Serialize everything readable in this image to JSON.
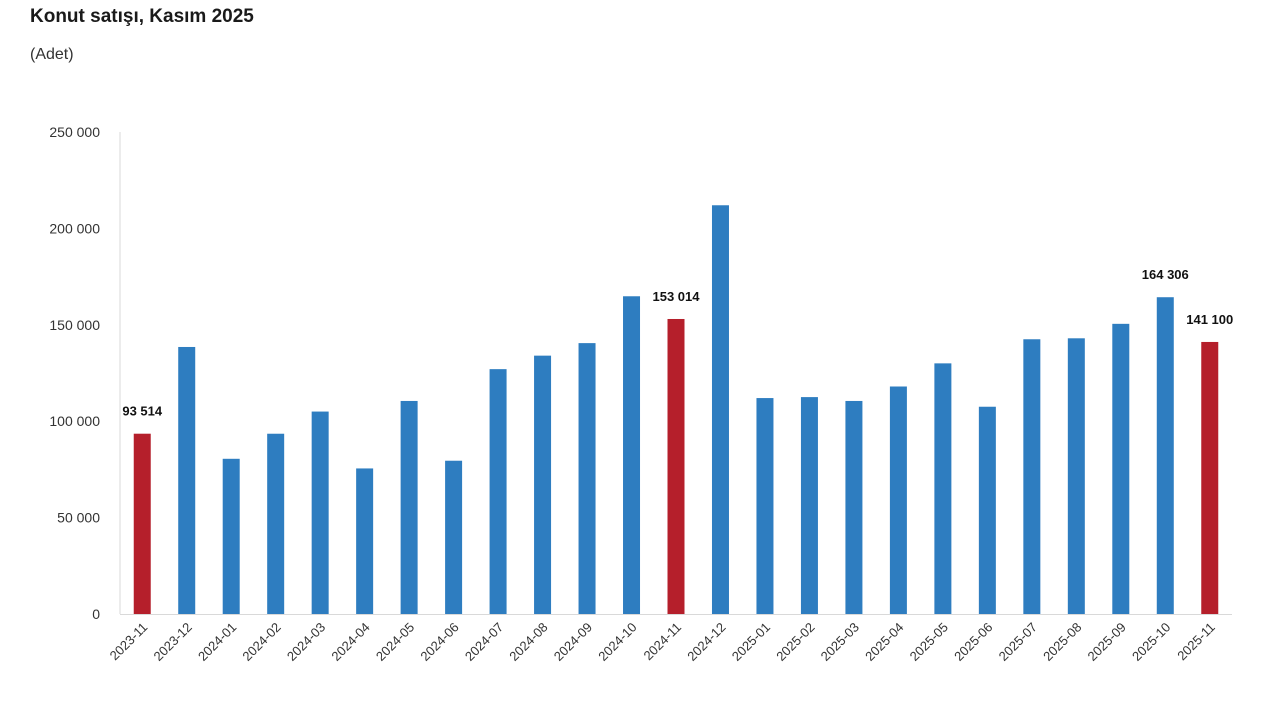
{
  "chart_data": {
    "type": "bar",
    "title": "Konut satışı, Kasım 2025",
    "subtitle": "(Adet)",
    "ylim": [
      0,
      250000
    ],
    "yticks": [
      0,
      50000,
      100000,
      150000,
      200000,
      250000
    ],
    "ytick_labels": [
      "0",
      "50 000",
      "100 000",
      "150 000",
      "200 000",
      "250 000"
    ],
    "categories": [
      "2023-11",
      "2023-12",
      "2024-01",
      "2024-02",
      "2024-03",
      "2024-04",
      "2024-05",
      "2024-06",
      "2024-07",
      "2024-08",
      "2024-09",
      "2024-10",
      "2024-11",
      "2024-12",
      "2025-01",
      "2025-02",
      "2025-03",
      "2025-04",
      "2025-05",
      "2025-06",
      "2025-07",
      "2025-08",
      "2025-09",
      "2025-10",
      "2025-11"
    ],
    "values": [
      93514,
      138500,
      80500,
      93500,
      105000,
      75500,
      110500,
      79500,
      127000,
      134000,
      140500,
      164800,
      153014,
      212000,
      112000,
      112500,
      110500,
      118000,
      130000,
      107500,
      142500,
      143000,
      150500,
      164306,
      141100
    ],
    "highlight": [
      true,
      false,
      false,
      false,
      false,
      false,
      false,
      false,
      false,
      false,
      false,
      false,
      true,
      false,
      false,
      false,
      false,
      false,
      false,
      false,
      false,
      false,
      false,
      false,
      true
    ],
    "data_labels": [
      {
        "index": 0,
        "text": "93 514"
      },
      {
        "index": 12,
        "text": "153 014"
      },
      {
        "index": 23,
        "text": "164 306"
      },
      {
        "index": 24,
        "text": "141 100"
      }
    ],
    "colors": {
      "default": "#2E7DC0",
      "highlight": "#B51F2B",
      "axis": "#d9d9d9"
    },
    "grid": false
  }
}
